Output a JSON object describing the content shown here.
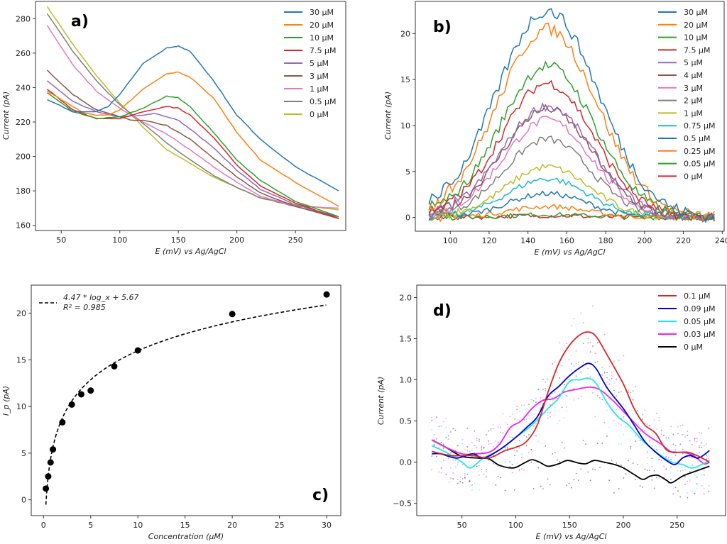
{
  "chart_data": [
    {
      "id": "a",
      "type": "line",
      "panel_label": "a)",
      "xlabel": "E (mV) vs Ag/AgCl",
      "ylabel": "Current (pA)",
      "xlim": [
        28,
        293
      ],
      "ylim": [
        157,
        290
      ],
      "xticks": [
        50,
        100,
        150,
        200,
        250
      ],
      "yticks": [
        160,
        180,
        200,
        220,
        240,
        260,
        280
      ],
      "legend_position": "top-right",
      "series": [
        {
          "name": "30 µM",
          "color": "#1f77b4",
          "x": [
            38,
            60,
            80,
            90,
            100,
            120,
            140,
            150,
            160,
            180,
            200,
            220,
            250,
            287
          ],
          "y": [
            233,
            226,
            226,
            229,
            236,
            254,
            263,
            264,
            261,
            244,
            224,
            210,
            194,
            180
          ]
        },
        {
          "name": "20 µM",
          "color": "#ff7f0e",
          "x": [
            38,
            50,
            60,
            70,
            80,
            90,
            100,
            120,
            140,
            150,
            160,
            180,
            200,
            220,
            250,
            287
          ],
          "y": [
            238,
            233,
            229,
            225,
            224,
            224,
            227,
            239,
            248,
            249,
            246,
            234,
            214,
            198,
            185,
            171
          ]
        },
        {
          "name": "10 µM",
          "color": "#2ca02c",
          "x": [
            38,
            60,
            80,
            100,
            120,
            140,
            150,
            160,
            180,
            200,
            220,
            250,
            287
          ],
          "y": [
            237,
            226,
            222,
            223,
            228,
            235,
            234,
            229,
            214,
            198,
            186,
            174,
            165
          ]
        },
        {
          "name": "7.5 µM",
          "color": "#d62728",
          "x": [
            38,
            60,
            80,
            100,
            120,
            140,
            150,
            160,
            180,
            200,
            220,
            250,
            287
          ],
          "y": [
            239,
            227,
            222,
            222,
            226,
            229,
            228,
            224,
            211,
            195,
            183,
            173,
            164
          ]
        },
        {
          "name": "5 µM",
          "color": "#9467bd",
          "x": [
            38,
            60,
            80,
            100,
            120,
            130,
            150,
            160,
            180,
            200,
            220,
            250,
            287
          ],
          "y": [
            244,
            232,
            226,
            223,
            224,
            225,
            221,
            216,
            205,
            192,
            181,
            172,
            165
          ]
        },
        {
          "name": "3 µM",
          "color": "#8c564b",
          "x": [
            38,
            60,
            80,
            100,
            110,
            120,
            140,
            160,
            180,
            200,
            220,
            250,
            287
          ],
          "y": [
            250,
            236,
            227,
            223,
            221,
            221,
            218,
            210,
            199,
            188,
            179,
            171,
            164
          ]
        },
        {
          "name": "1 µM",
          "color": "#e377c2",
          "x": [
            38,
            60,
            80,
            100,
            120,
            140,
            160,
            180,
            200,
            220,
            250,
            287
          ],
          "y": [
            276,
            253,
            238,
            228,
            220,
            213,
            204,
            194,
            185,
            177,
            171,
            170
          ]
        },
        {
          "name": "0.5 µM",
          "color": "#7f7f7f",
          "x": [
            38,
            60,
            80,
            100,
            120,
            140,
            160,
            180,
            200,
            220,
            250,
            287
          ],
          "y": [
            283,
            261,
            244,
            230,
            219,
            208,
            198,
            189,
            182,
            176,
            171,
            165
          ]
        },
        {
          "name": "0 µM",
          "color": "#bcbd22",
          "x": [
            38,
            60,
            80,
            100,
            120,
            140,
            160,
            180,
            200,
            220,
            250,
            287
          ],
          "y": [
            287,
            265,
            247,
            231,
            217,
            204,
            196,
            188,
            182,
            176,
            172,
            169
          ]
        }
      ]
    },
    {
      "id": "b",
      "type": "line",
      "panel_label": "b)",
      "xlabel": "E (mV) vs Ag/AgCl",
      "ylabel": "Current (pA)",
      "xlim": [
        82,
        241
      ],
      "ylim": [
        -1.5,
        23.5
      ],
      "xticks": [
        100,
        120,
        140,
        160,
        180,
        200,
        220,
        240
      ],
      "yticks": [
        0,
        5,
        10,
        15,
        20
      ],
      "legend_position": "top-right",
      "series": [
        {
          "name": "30 µM",
          "color": "#1f77b4",
          "peak": 22.5
        },
        {
          "name": "20 µM",
          "color": "#ff7f0e",
          "peak": 20.5
        },
        {
          "name": "10 µM",
          "color": "#2ca02c",
          "peak": 16.5
        },
        {
          "name": "7.5 µM",
          "color": "#d62728",
          "peak": 14.6
        },
        {
          "name": "5 µM",
          "color": "#9467bd",
          "peak": 12.1
        },
        {
          "name": "4 µM",
          "color": "#8c564b",
          "peak": 11.8
        },
        {
          "name": "3 µM",
          "color": "#e377c2",
          "peak": 10.6
        },
        {
          "name": "2 µM",
          "color": "#7f7f7f",
          "peak": 8.5
        },
        {
          "name": "1 µM",
          "color": "#bcbd22",
          "peak": 5.5
        },
        {
          "name": "0.75 µM",
          "color": "#17becf",
          "peak": 4.2
        },
        {
          "name": "0.5 µM",
          "color": "#1f77b4",
          "peak": 2.6
        },
        {
          "name": "0.25 µM",
          "color": "#ff7f0e",
          "peak": 1.2
        },
        {
          "name": "0.05 µM",
          "color": "#2ca02c",
          "peak": 0.3
        },
        {
          "name": "0 µM",
          "color": "#d62728",
          "peak": 0.2
        }
      ],
      "x_range": [
        89,
        236
      ],
      "peak_center": 150
    },
    {
      "id": "c",
      "type": "scatter",
      "panel_label": "c)",
      "xlabel": "Concentration (µM)",
      "ylabel": "I_p (pA)",
      "xlim": [
        -1.3,
        31.5
      ],
      "ylim": [
        -1.7,
        23
      ],
      "xticks": [
        0,
        5,
        10,
        15,
        20,
        25,
        30
      ],
      "yticks": [
        0,
        5,
        10,
        15,
        20
      ],
      "legend_position": "top-left",
      "points": {
        "x": [
          0.25,
          0.5,
          0.75,
          1,
          2,
          3,
          4,
          5,
          7.5,
          10,
          20,
          30
        ],
        "y": [
          1.2,
          2.5,
          4.0,
          5.4,
          8.3,
          10.2,
          11.3,
          11.7,
          14.3,
          16.0,
          19.9,
          22.0
        ]
      },
      "fit": {
        "label": "4.47 * log_x + 5.67",
        "r2_label": "R² = 0.985",
        "slope": 4.47,
        "intercept": 5.67,
        "x_range": [
          0.25,
          30
        ]
      }
    },
    {
      "id": "d",
      "type": "line",
      "panel_label": "d)",
      "xlabel": "E (mV) vs Ag/AgCl",
      "ylabel": "Current (pA)",
      "xlim": [
        8,
        295
      ],
      "ylim": [
        -0.65,
        2.15
      ],
      "xticks": [
        50,
        100,
        150,
        200,
        250
      ],
      "yticks": [
        -0.5,
        0.0,
        0.5,
        1.0,
        1.5,
        2.0
      ],
      "ytick_labels": [
        "−0.5",
        "0.0",
        "0.5",
        "1.0",
        "1.5",
        "2.0"
      ],
      "legend_position": "top-right",
      "series": [
        {
          "name": "0.1 µM",
          "color": "#d62728",
          "x": [
            22,
            40,
            60,
            75,
            90,
            100,
            110,
            120,
            130,
            140,
            150,
            160,
            168,
            175,
            185,
            200,
            210,
            220,
            230,
            240,
            250,
            260,
            270,
            280
          ],
          "y": [
            0.13,
            0.08,
            0.08,
            0.05,
            0.14,
            0.18,
            0.25,
            0.45,
            0.85,
            1.2,
            1.42,
            1.55,
            1.58,
            1.52,
            1.3,
            0.95,
            0.65,
            0.45,
            0.35,
            0.15,
            0.12,
            0.12,
            0.07,
            0.0
          ]
        },
        {
          "name": "0.09 µM",
          "color": "#0000cd",
          "x": [
            22,
            30,
            45,
            60,
            70,
            85,
            100,
            110,
            120,
            130,
            140,
            150,
            160,
            168,
            175,
            185,
            200,
            210,
            220,
            230,
            240,
            248,
            255,
            262,
            270,
            280
          ],
          "y": [
            0.1,
            0.1,
            0.05,
            0.1,
            0.05,
            0.15,
            0.3,
            0.42,
            0.55,
            0.8,
            0.92,
            1.05,
            1.15,
            1.2,
            1.13,
            0.9,
            0.65,
            0.45,
            0.25,
            0.12,
            0.02,
            -0.03,
            0.05,
            0.08,
            0.05,
            0.14
          ]
        },
        {
          "name": "0.05 µM",
          "color": "#22e5f0",
          "x": [
            22,
            35,
            50,
            58,
            70,
            85,
            100,
            115,
            130,
            140,
            150,
            160,
            168,
            175,
            185,
            195,
            205,
            215,
            225,
            235,
            245,
            255,
            265,
            280
          ],
          "y": [
            0.2,
            0.12,
            0.0,
            -0.07,
            0.05,
            0.15,
            0.3,
            0.45,
            0.65,
            0.78,
            0.98,
            1.0,
            1.02,
            0.95,
            0.72,
            0.55,
            0.45,
            0.3,
            0.18,
            0.08,
            0.0,
            -0.03,
            -0.07,
            0.02
          ]
        },
        {
          "name": "0.03 µM",
          "color": "#ee22ee",
          "x": [
            22,
            35,
            50,
            60,
            75,
            85,
            95,
            105,
            115,
            125,
            135,
            145,
            155,
            168,
            178,
            190,
            205,
            220,
            235,
            245,
            255,
            265,
            275,
            280
          ],
          "y": [
            0.27,
            0.18,
            0.1,
            0.1,
            0.12,
            0.22,
            0.42,
            0.5,
            0.65,
            0.75,
            0.77,
            0.85,
            0.88,
            0.91,
            0.88,
            0.75,
            0.55,
            0.35,
            0.22,
            0.12,
            0.12,
            0.08,
            -0.02,
            0.0
          ]
        },
        {
          "name": "0 µM",
          "color": "#000000",
          "x": [
            22,
            35,
            50,
            65,
            75,
            85,
            98,
            108,
            115,
            122,
            130,
            140,
            148,
            158,
            165,
            173,
            182,
            192,
            200,
            210,
            218,
            225,
            232,
            240,
            245,
            255,
            265,
            280
          ],
          "y": [
            0.27,
            0.18,
            0.07,
            0.05,
            0.04,
            -0.04,
            -0.07,
            -0.01,
            0.03,
            0.0,
            -0.05,
            -0.02,
            0.02,
            -0.01,
            -0.02,
            0.02,
            0.0,
            -0.03,
            -0.07,
            -0.15,
            -0.21,
            -0.17,
            -0.16,
            -0.22,
            -0.25,
            -0.17,
            -0.12,
            -0.05
          ]
        }
      ]
    }
  ]
}
